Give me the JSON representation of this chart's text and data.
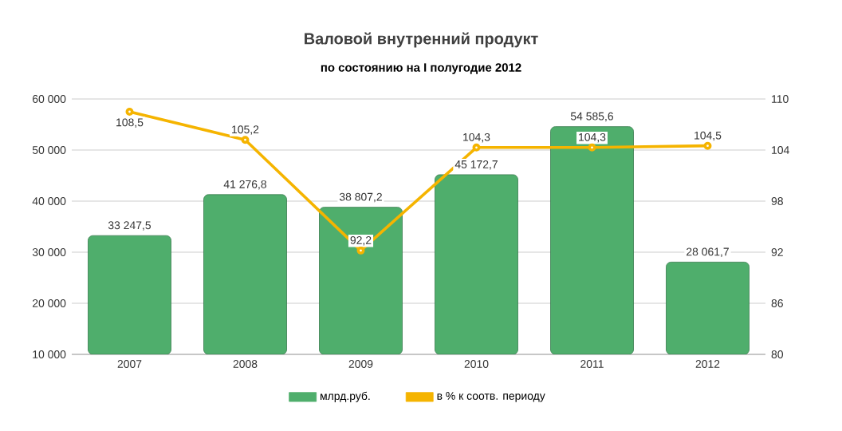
{
  "chart_data": {
    "type": "bar",
    "title": "Валовой внутренний продукт",
    "subtitle": "по состоянию на I полугодие 2012",
    "categories": [
      "2007",
      "2008",
      "2009",
      "2010",
      "2011",
      "2012"
    ],
    "series": [
      {
        "name": "млрд.руб.",
        "color": "#4fae6c",
        "values": [
          33247.5,
          41276.8,
          38807.2,
          45172.7,
          54585.6,
          28061.7
        ],
        "value_labels": [
          "33 247,5",
          "41 276,8",
          "38 807,2",
          "45 172,7",
          "54 585,6",
          "28 061,7"
        ]
      },
      {
        "name": "в % к соотв. периоду",
        "type": "line",
        "axis": "y2",
        "color": "#f5b400",
        "marker": "circle",
        "values": [
          108.5,
          105.2,
          92.2,
          104.3,
          104.3,
          104.5
        ],
        "value_labels": [
          "108,5",
          "105,2",
          "92,2",
          "104,3",
          "104,3",
          "104,5"
        ]
      }
    ],
    "ylim": [
      10000,
      60000
    ],
    "yticks": [
      {
        "value": 10000,
        "label": "10 000"
      },
      {
        "value": 20000,
        "label": "20 000"
      },
      {
        "value": 30000,
        "label": "30 000"
      },
      {
        "value": 40000,
        "label": "40 000"
      },
      {
        "value": 50000,
        "label": "50 000"
      },
      {
        "value": 60000,
        "label": "60 000"
      }
    ],
    "y2lim": [
      80,
      110
    ],
    "y2ticks": [
      80,
      86,
      92,
      98,
      104,
      110
    ],
    "grid": "y",
    "legend": "bottom"
  }
}
